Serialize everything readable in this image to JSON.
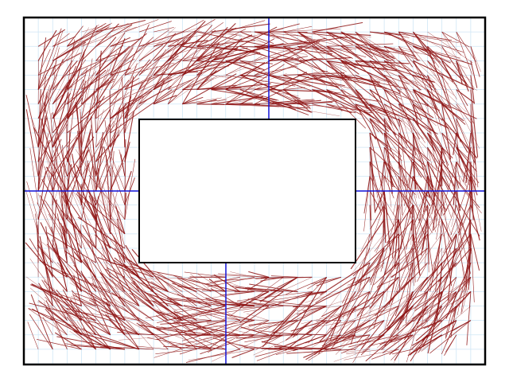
{
  "colors": {
    "background": "#ffffff",
    "grid": "#cfe6f5",
    "frame": "#000000",
    "axis": "#1414d8",
    "flow": "#8e1414"
  },
  "diagram": {
    "type": "vector-flow-field",
    "grid": "on",
    "description_visible_text": ""
  }
}
